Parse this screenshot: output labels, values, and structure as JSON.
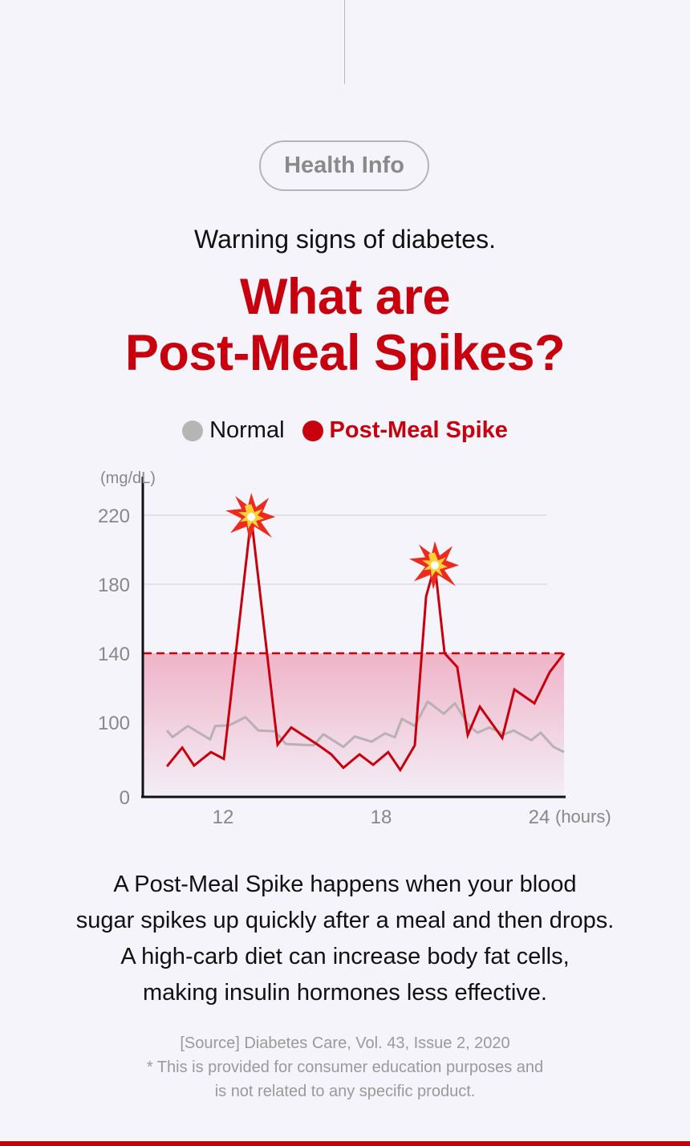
{
  "header": {
    "pill": "Health Info",
    "subtitle": "Warning signs of diabetes.",
    "title_line1": "What are",
    "title_line2": "Post-Meal Spikes?"
  },
  "colors": {
    "accent": "#c8000e",
    "normal": "#b8b0b2",
    "zone": "#f0b4c8"
  },
  "chart_data": {
    "type": "line",
    "ylabel": "(mg/dL)",
    "xlabel": "(hours)",
    "yticks": [
      0,
      100,
      140,
      180,
      220
    ],
    "xticks": [
      12,
      18,
      24
    ],
    "xlim": [
      8.95,
      24.95
    ],
    "ylim": [
      0,
      240
    ],
    "threshold": 140,
    "legend": [
      "Normal",
      "Post-Meal Spike"
    ],
    "legend_position": "top",
    "annotations": [
      {
        "icon": "explosion-icon",
        "x": 13.07,
        "y": 219
      },
      {
        "icon": "explosion-icon",
        "x": 20.04,
        "y": 191
      }
    ],
    "series": [
      {
        "name": "Normal",
        "color": "#b8b0b2",
        "x": [
          9.87,
          10.08,
          10.66,
          11.51,
          11.7,
          12.24,
          12.85,
          13.34,
          13.98,
          14.38,
          15.44,
          15.81,
          16.57,
          17.0,
          17.64,
          18.15,
          18.52,
          18.79,
          19.28,
          19.77,
          20.38,
          20.8,
          21.35,
          21.66,
          22.11,
          22.69,
          23.03,
          23.7,
          24.06,
          24.55,
          24.95
        ],
        "y": [
          89,
          80,
          95,
          77,
          95,
          96,
          103,
          89,
          88,
          71,
          69,
          84,
          67,
          81,
          74,
          85,
          80,
          102,
          95,
          112,
          105,
          111,
          95,
          86,
          93,
          84,
          89,
          76,
          86,
          67,
          60
        ]
      },
      {
        "name": "Post-Meal Spike",
        "color": "#c8000e",
        "x": [
          9.87,
          10.45,
          10.9,
          11.54,
          12.03,
          13.07,
          14.07,
          14.59,
          15.59,
          16.11,
          16.57,
          17.18,
          17.7,
          18.27,
          18.73,
          19.28,
          19.71,
          20.04,
          20.41,
          20.89,
          21.29,
          21.75,
          22.6,
          23.06,
          23.82,
          24.4,
          24.95
        ],
        "y": [
          41,
          66,
          42,
          60,
          51,
          219,
          70,
          93,
          70,
          57,
          39,
          57,
          43,
          60,
          36,
          69,
          173,
          191,
          140,
          132,
          83,
          109,
          79,
          119,
          111,
          129,
          140
        ]
      }
    ]
  },
  "body": {
    "lines": [
      "A Post-Meal Spike happens when your blood",
      "sugar spikes up quickly after a meal and then drops.",
      "A high-carb diet can increase body fat cells,",
      "making insulin hormones less effective."
    ]
  },
  "source": {
    "lines": [
      "[Source] Diabetes Care, Vol. 43, Issue 2, 2020",
      "* This is provided for consumer education purposes and",
      "is not related to any specific product."
    ]
  }
}
